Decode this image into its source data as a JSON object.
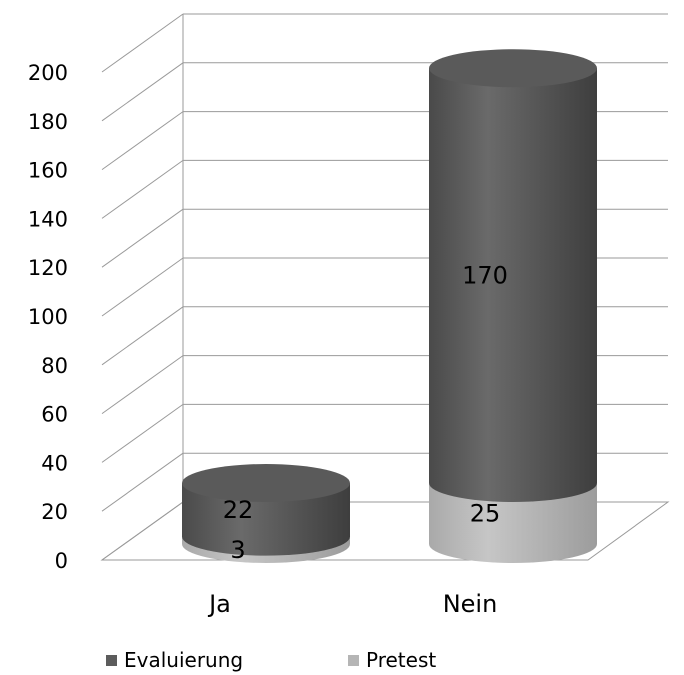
{
  "chart_data": {
    "type": "bar",
    "style": "3d-stacked-cylinder",
    "categories": [
      "Ja",
      "Nein"
    ],
    "series": [
      {
        "name": "Pretest",
        "values": [
          3,
          25
        ],
        "color": "#b5b5b5"
      },
      {
        "name": "Evaluierung",
        "values": [
          22,
          170
        ],
        "color": "#5c5c5c"
      }
    ],
    "ylim": [
      0,
      200
    ],
    "yticks": [
      0,
      20,
      40,
      60,
      80,
      100,
      120,
      140,
      160,
      180,
      200
    ],
    "grid": true,
    "legend": {
      "position": "bottom",
      "order": [
        "Evaluierung",
        "Pretest"
      ]
    },
    "data_labels": true
  }
}
